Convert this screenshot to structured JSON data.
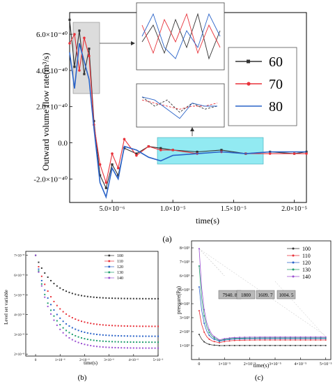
{
  "chart_data": [
    {
      "panel": "(a)",
      "type": "line",
      "xlabel": "time(s)",
      "ylabel": "Outward volume flow rate(m³/s)",
      "xlim": [
        1.5e-06,
        2.1e-05
      ],
      "ylim": [
        -3.3e-41,
        7.2e-41
      ],
      "xticks": [
        {
          "v": 5e-06,
          "label": "5.0×10⁻⁶"
        },
        {
          "v": 1e-05,
          "label": "1.0×10⁻⁵"
        },
        {
          "v": 1.5e-05,
          "label": "1.5×10⁻⁵"
        },
        {
          "v": 2e-05,
          "label": "2.0×10⁻⁵"
        }
      ],
      "yticks": [
        {
          "v": -2e-41,
          "label": "-2.0×10⁻⁴⁰"
        },
        {
          "v": 0,
          "label": "0.0"
        },
        {
          "v": 2e-41,
          "label": "2.0×10⁻⁴⁰"
        },
        {
          "v": 4e-41,
          "label": "4.0×10⁻⁴⁰"
        },
        {
          "v": 6e-41,
          "label": "6.0×10⁻⁴⁰"
        }
      ],
      "legend": [
        "60",
        "70",
        "80"
      ],
      "colors": [
        "#333333",
        "#e8323a",
        "#2a63c8"
      ],
      "series": [
        {
          "name": "60",
          "x": [
            1.5e-06,
            1.9e-06,
            2.3e-06,
            2.7e-06,
            3.1e-06,
            3.5e-06,
            4e-06,
            4.5e-06,
            5e-06,
            5.5e-06,
            6e-06,
            7e-06,
            8e-06,
            9e-06,
            1e-05,
            1.2e-05,
            1.4e-05,
            1.6e-05,
            1.8e-05,
            2e-05,
            2.1e-05
          ],
          "y": [
            6.8e-41,
            4.2e-41,
            6.2e-41,
            3.8e-41,
            5.2e-41,
            1.2e-41,
            -1.8e-41,
            -2.5e-41,
            -1.2e-41,
            -1.8e-41,
            -3e-42,
            -6e-42,
            -2e-42,
            -3e-42,
            -4e-42,
            -5e-42,
            -4e-42,
            -6e-42,
            -5e-42,
            -6e-42,
            -5e-42
          ]
        },
        {
          "name": "70",
          "x": [
            1.5e-06,
            1.9e-06,
            2.3e-06,
            2.7e-06,
            3.1e-06,
            3.5e-06,
            4e-06,
            4.5e-06,
            5e-06,
            5.5e-06,
            6e-06,
            7e-06,
            8e-06,
            9e-06,
            1e-05,
            1.2e-05,
            1.4e-05,
            1.6e-05,
            1.8e-05,
            2e-05,
            2.1e-05
          ],
          "y": [
            5.5e-41,
            6e-41,
            4e-41,
            5.8e-41,
            4.8e-41,
            1e-41,
            -1.2e-41,
            -2.2e-41,
            -6e-42,
            -1.4e-41,
            2e-42,
            -7e-42,
            -2e-42,
            -4e-42,
            -4e-42,
            -6e-42,
            -5e-42,
            -6e-42,
            -6e-42,
            -6e-42,
            -6e-42
          ]
        },
        {
          "name": "80",
          "x": [
            1.5e-06,
            1.9e-06,
            2.3e-06,
            2.7e-06,
            3.1e-06,
            3.5e-06,
            4e-06,
            4.5e-06,
            5e-06,
            5.5e-06,
            6e-06,
            7e-06,
            8e-06,
            9e-06,
            1e-05,
            1.2e-05,
            1.4e-05,
            1.6e-05,
            1.8e-05,
            2e-05,
            2.1e-05
          ],
          "y": [
            5e-41,
            3e-41,
            5.5e-41,
            4.5e-41,
            3.5e-41,
            8e-42,
            -2.2e-41,
            -3e-41,
            -1.4e-41,
            -2e-41,
            -2e-42,
            -4e-42,
            -8e-42,
            -1e-41,
            -7e-42,
            -6e-42,
            -5e-42,
            -6e-42,
            -5e-42,
            -5e-42,
            -5e-42
          ]
        }
      ]
    },
    {
      "panel": "(b)",
      "type": "line",
      "xlabel": "time(s)",
      "ylabel": "Level set variable",
      "xlim": [
        -4e-07,
        5e-06
      ],
      "ylim": [
        1.9e-08,
        7.2e-08
      ],
      "xticks": [
        {
          "v": 0,
          "label": "0"
        },
        {
          "v": 1e-06,
          "label": "1×10⁻⁶"
        },
        {
          "v": 2e-06,
          "label": "2×10⁻⁶"
        },
        {
          "v": 3e-06,
          "label": "3×10⁻⁶"
        },
        {
          "v": 4e-06,
          "label": "4×10⁻⁶"
        },
        {
          "v": 5e-06,
          "label": "5×10⁻⁶"
        }
      ],
      "yticks": [
        {
          "v": 2e-08,
          "label": "2×10⁻⁸"
        },
        {
          "v": 3e-08,
          "label": "3×10⁻⁸"
        },
        {
          "v": 4e-08,
          "label": "4×10⁻⁸"
        },
        {
          "v": 5e-08,
          "label": "5×10⁻⁸"
        },
        {
          "v": 6e-08,
          "label": "6×10⁻⁸"
        },
        {
          "v": 7e-08,
          "label": "7×10⁻⁸"
        }
      ],
      "legend": [
        "100",
        "110",
        "120",
        "130",
        "140"
      ],
      "colors": [
        "#333333",
        "#e8323a",
        "#2a63c8",
        "#1f9e6e",
        "#9b4fd1"
      ],
      "series": [
        {
          "name": "100",
          "x0": 0,
          "y0": 7e-08,
          "yend": 4.8e-08,
          "k": 1400000
        },
        {
          "name": "110",
          "x0": 0,
          "y0": 7e-08,
          "yend": 3.4e-08,
          "k": 1400000
        },
        {
          "name": "120",
          "x0": 0,
          "y0": 7e-08,
          "yend": 2.9e-08,
          "k": 1500000
        },
        {
          "name": "130",
          "x0": 0,
          "y0": 7e-08,
          "yend": 2.6e-08,
          "k": 1600000
        },
        {
          "name": "140",
          "x0": 0,
          "y0": 7e-08,
          "yend": 2.3e-08,
          "k": 1600000
        }
      ]
    },
    {
      "panel": "(c)",
      "type": "line",
      "xlabel": "time(s)",
      "ylabel": "pressure(Pa)",
      "xlim": [
        -3e-07,
        5.2e-06
      ],
      "ylim": [
        0,
        8500
      ],
      "xticks": [
        {
          "v": 0,
          "label": "0"
        },
        {
          "v": 1e-06,
          "label": "1×10⁻⁵"
        },
        {
          "v": 2e-06,
          "label": "2×10⁻⁵"
        },
        {
          "v": 3e-06,
          "label": "3×10⁻⁵"
        },
        {
          "v": 4e-06,
          "label": "4×10⁻⁵"
        },
        {
          "v": 5e-06,
          "label": "5×10⁻⁵"
        }
      ],
      "yticks": [
        {
          "v": 1000,
          "label": "1×10³"
        },
        {
          "v": 2000,
          "label": "2×10³"
        },
        {
          "v": 3000,
          "label": "3×10³"
        },
        {
          "v": 4000,
          "label": "4×10³"
        },
        {
          "v": 5000,
          "label": "5×10³"
        },
        {
          "v": 6000,
          "label": "6×10³"
        },
        {
          "v": 7000,
          "label": "7×10³"
        },
        {
          "v": 8000,
          "label": "8×10³"
        }
      ],
      "legend": [
        "100",
        "110",
        "120",
        "130",
        "140"
      ],
      "colors": [
        "#333333",
        "#e8323a",
        "#2a63c8",
        "#1f9e6e",
        "#9b4fd1"
      ],
      "annotations": [
        "7940. 8",
        "1800",
        "1609. 7",
        "1004. 5"
      ],
      "series": [
        {
          "name": "100",
          "y0": 1800,
          "ymin": 1000,
          "yend": 1004.5
        },
        {
          "name": "110",
          "y0": 3500,
          "ymin": 1200,
          "yend": 1400
        },
        {
          "name": "120",
          "y0": 5200,
          "ymin": 1300,
          "yend": 1500
        },
        {
          "name": "130",
          "y0": 6700,
          "ymin": 1350,
          "yend": 1550
        },
        {
          "name": "140",
          "y0": 7940.8,
          "ymin": 1400,
          "yend": 1609.7
        }
      ]
    }
  ],
  "captions": {
    "a": "(a)",
    "b": "(b)",
    "c": "(c)"
  }
}
